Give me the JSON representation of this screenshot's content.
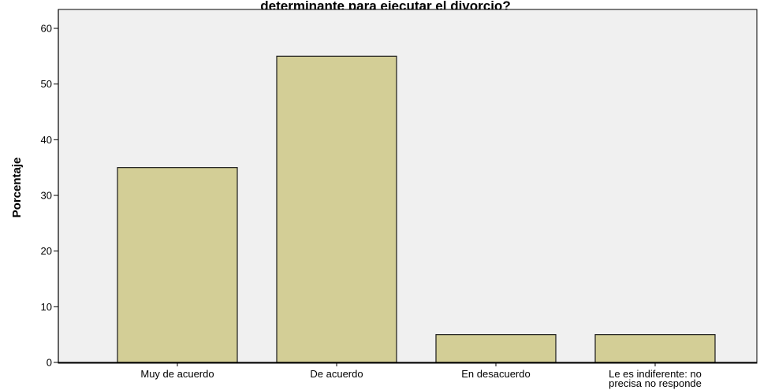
{
  "chart_data": {
    "type": "bar",
    "title": "determinante para ejecutar el divorcio?",
    "ylabel": "Porcentaje",
    "xlabel": "",
    "categories": [
      [
        "Muy de acuerdo"
      ],
      [
        "De acuerdo"
      ],
      [
        "En desacuerdo"
      ],
      [
        "Le es indiferente: no",
        "precisa no responde"
      ]
    ],
    "values": [
      35,
      55,
      5,
      5
    ],
    "ylim": [
      0,
      63
    ],
    "yticks": [
      0,
      10,
      20,
      30,
      40,
      50,
      60
    ],
    "grid": false,
    "colors": {
      "plot_background": "#f0f0f0",
      "bar_fill": "#d3ce96",
      "bar_stroke": "#1a1a1a",
      "axis": "#000000"
    }
  }
}
